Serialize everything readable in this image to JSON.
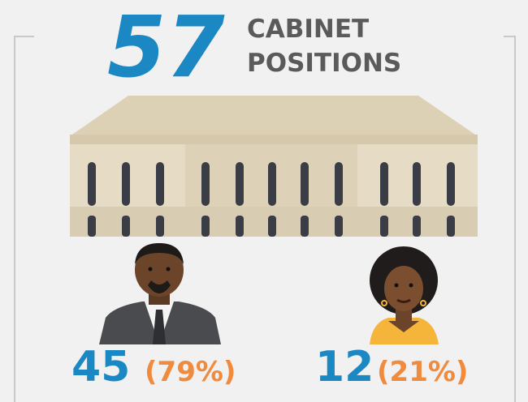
{
  "header": {
    "number": "57",
    "label_lines": [
      "CABINET",
      "POSITIONS"
    ]
  },
  "groups": [
    {
      "count": "45",
      "share": "(79%)"
    },
    {
      "count": "12",
      "share": "(21%)"
    }
  ]
}
